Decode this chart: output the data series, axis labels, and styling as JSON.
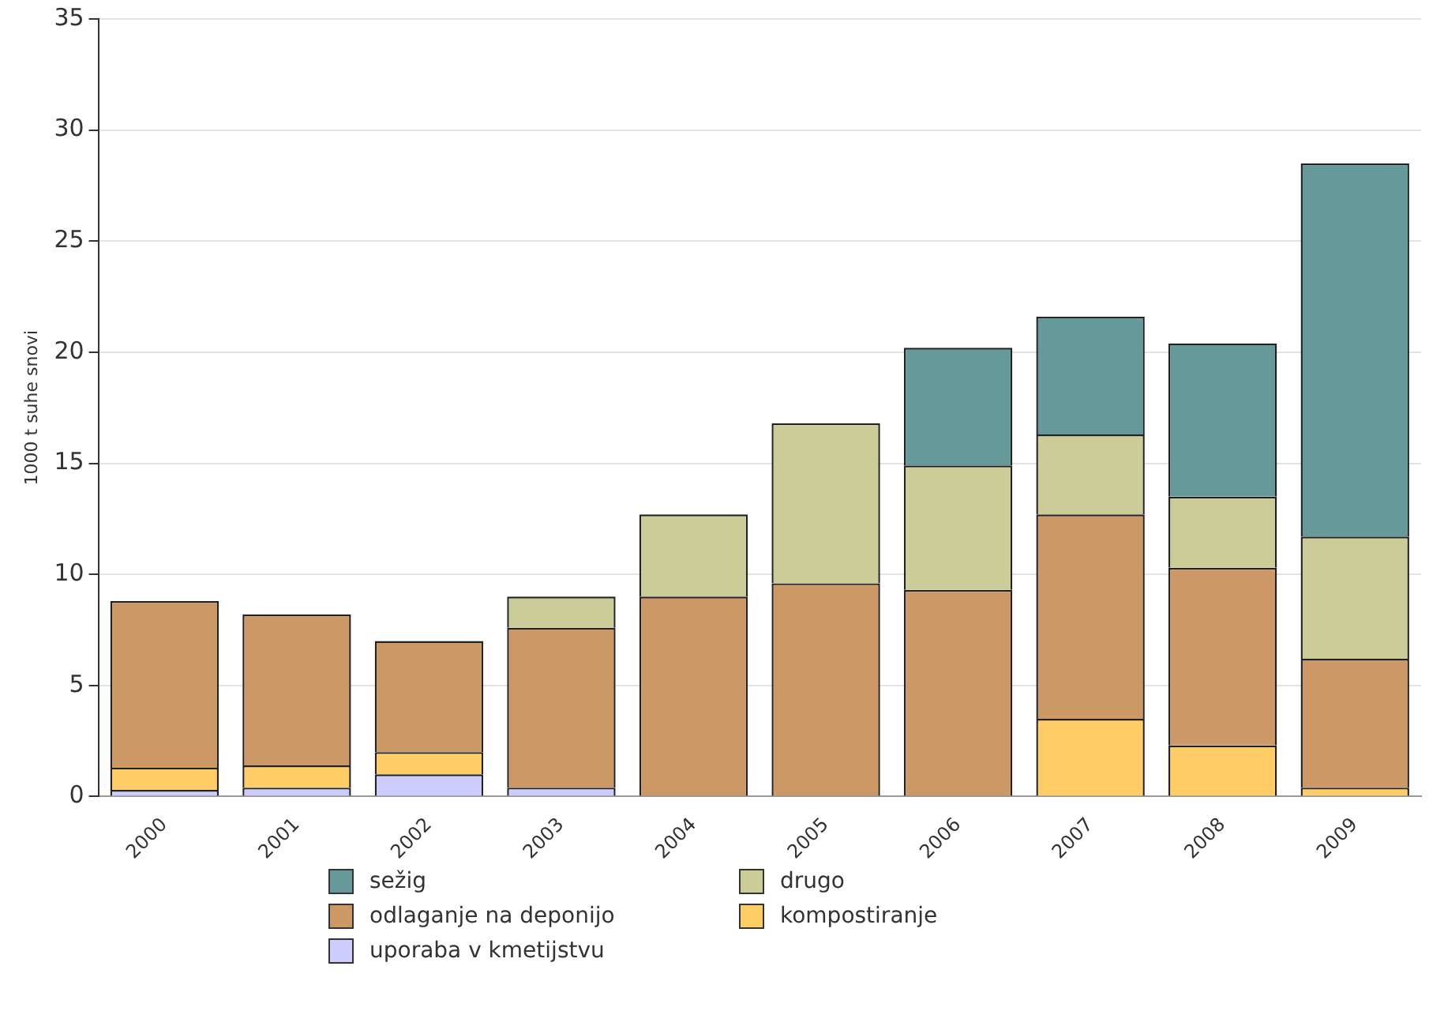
{
  "chart_data": {
    "type": "bar",
    "stacked": true,
    "ylabel": "1000 t suhe snovi",
    "categories": [
      "2000",
      "2001",
      "2002",
      "2003",
      "2004",
      "2005",
      "2006",
      "2007",
      "2008",
      "2009"
    ],
    "series": [
      {
        "name": "uporaba v kmetijstvu",
        "color": "#ccccff",
        "values": [
          0.3,
          0.4,
          1.0,
          0.4,
          null,
          null,
          null,
          null,
          null,
          null
        ]
      },
      {
        "name": "kompostiranje",
        "color": "#ffcc66",
        "values": [
          1.0,
          1.0,
          1.0,
          null,
          null,
          null,
          null,
          3.5,
          2.3,
          0.4
        ]
      },
      {
        "name": "odlaganje na deponijo",
        "color": "#cc9966",
        "values": [
          7.5,
          6.8,
          5.0,
          7.2,
          9.0,
          9.6,
          9.3,
          9.2,
          8.0,
          5.8
        ]
      },
      {
        "name": "drugo",
        "color": "#cccc99",
        "values": [
          null,
          null,
          null,
          1.4,
          3.7,
          7.2,
          5.6,
          3.6,
          3.2,
          5.5
        ]
      },
      {
        "name": "sežig",
        "color": "#669999",
        "values": [
          null,
          null,
          null,
          null,
          null,
          null,
          5.3,
          5.3,
          6.9,
          16.8
        ]
      }
    ],
    "ylim": [
      0,
      35
    ],
    "yticks": [
      0,
      5,
      10,
      15,
      20,
      25,
      30,
      35
    ],
    "grid": "y",
    "legend": "bottom"
  }
}
